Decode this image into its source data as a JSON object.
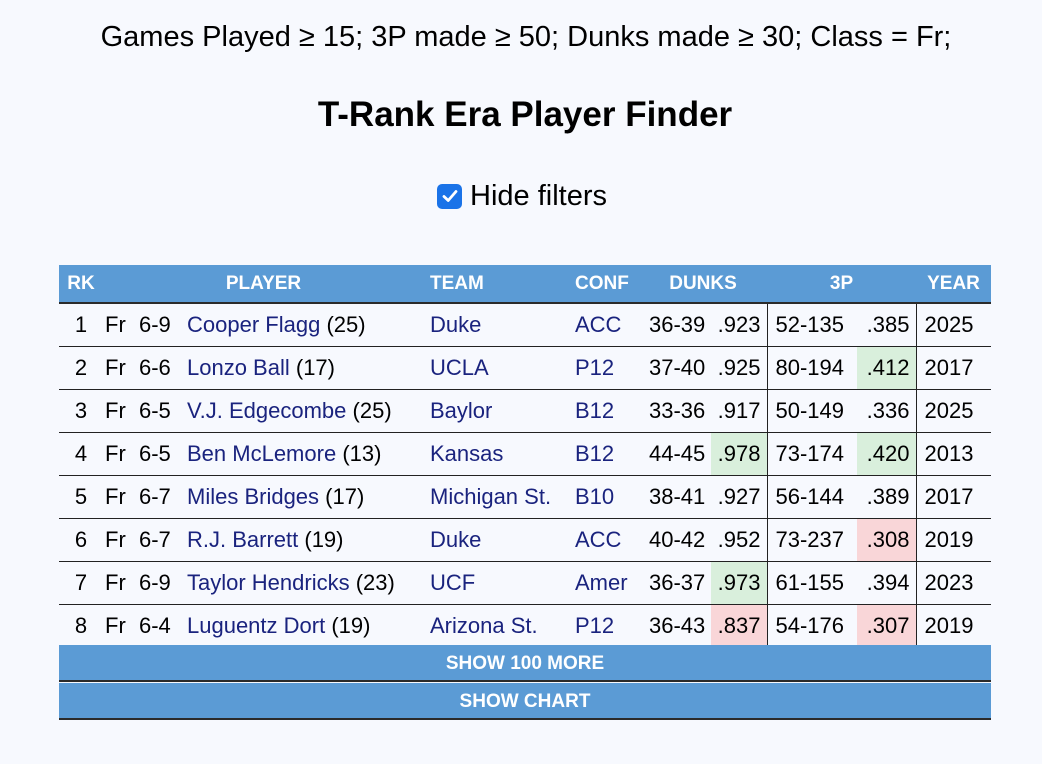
{
  "filter_summary": "Games Played ≥ 15; 3P made ≥ 50; Dunks made ≥ 30; Class = Fr;",
  "title": "T-Rank Era Player Finder",
  "hide_filters": {
    "label": "Hide filters",
    "checked": true
  },
  "table": {
    "headers": {
      "rk": "RK",
      "player": "PLAYER",
      "team": "TEAM",
      "conf": "CONF",
      "dunks": "DUNKS",
      "three_p": "3P",
      "year": "YEAR"
    },
    "rows": [
      {
        "rk": "1",
        "cls": "Fr",
        "ht": "6-9",
        "name": "Cooper Flagg",
        "games": "(25)",
        "team": "Duke",
        "conf": "ACC",
        "dunks_made": "36-39",
        "dunks_pct": ".923",
        "dunks_hl": "none",
        "tp_made": "52-135",
        "tp_pct": ".385",
        "tp_hl": "none",
        "year": "2025"
      },
      {
        "rk": "2",
        "cls": "Fr",
        "ht": "6-6",
        "name": "Lonzo Ball",
        "games": "(17)",
        "team": "UCLA",
        "conf": "P12",
        "dunks_made": "37-40",
        "dunks_pct": ".925",
        "dunks_hl": "none",
        "tp_made": "80-194",
        "tp_pct": ".412",
        "tp_hl": "green",
        "year": "2017"
      },
      {
        "rk": "3",
        "cls": "Fr",
        "ht": "6-5",
        "name": "V.J. Edgecombe",
        "games": "(25)",
        "team": "Baylor",
        "conf": "B12",
        "dunks_made": "33-36",
        "dunks_pct": ".917",
        "dunks_hl": "none",
        "tp_made": "50-149",
        "tp_pct": ".336",
        "tp_hl": "none",
        "year": "2025"
      },
      {
        "rk": "4",
        "cls": "Fr",
        "ht": "6-5",
        "name": "Ben McLemore",
        "games": "(13)",
        "team": "Kansas",
        "conf": "B12",
        "dunks_made": "44-45",
        "dunks_pct": ".978",
        "dunks_hl": "green",
        "tp_made": "73-174",
        "tp_pct": ".420",
        "tp_hl": "green",
        "year": "2013"
      },
      {
        "rk": "5",
        "cls": "Fr",
        "ht": "6-7",
        "name": "Miles Bridges",
        "games": "(17)",
        "team": "Michigan St.",
        "conf": "B10",
        "dunks_made": "38-41",
        "dunks_pct": ".927",
        "dunks_hl": "none",
        "tp_made": "56-144",
        "tp_pct": ".389",
        "tp_hl": "none",
        "year": "2017"
      },
      {
        "rk": "6",
        "cls": "Fr",
        "ht": "6-7",
        "name": "R.J. Barrett",
        "games": "(19)",
        "team": "Duke",
        "conf": "ACC",
        "dunks_made": "40-42",
        "dunks_pct": ".952",
        "dunks_hl": "none",
        "tp_made": "73-237",
        "tp_pct": ".308",
        "tp_hl": "red",
        "year": "2019"
      },
      {
        "rk": "7",
        "cls": "Fr",
        "ht": "6-9",
        "name": "Taylor Hendricks",
        "games": "(23)",
        "team": "UCF",
        "conf": "Amer",
        "dunks_made": "36-37",
        "dunks_pct": ".973",
        "dunks_hl": "green",
        "tp_made": "61-155",
        "tp_pct": ".394",
        "tp_hl": "none",
        "year": "2023"
      },
      {
        "rk": "8",
        "cls": "Fr",
        "ht": "6-4",
        "name": "Luguentz Dort",
        "games": "(19)",
        "team": "Arizona St.",
        "conf": "P12",
        "dunks_made": "36-43",
        "dunks_pct": ".837",
        "dunks_hl": "red",
        "tp_made": "54-176",
        "tp_pct": ".307",
        "tp_hl": "red",
        "year": "2019"
      }
    ]
  },
  "buttons": {
    "show_more": "SHOW 100 MORE",
    "show_chart": "SHOW CHART"
  },
  "colors": {
    "header_bg": "#5b9bd5",
    "link": "#1a237e",
    "highlight_green": "#d9efdc",
    "highlight_red": "#f9d6d8",
    "checkbox": "#1a73e8"
  }
}
